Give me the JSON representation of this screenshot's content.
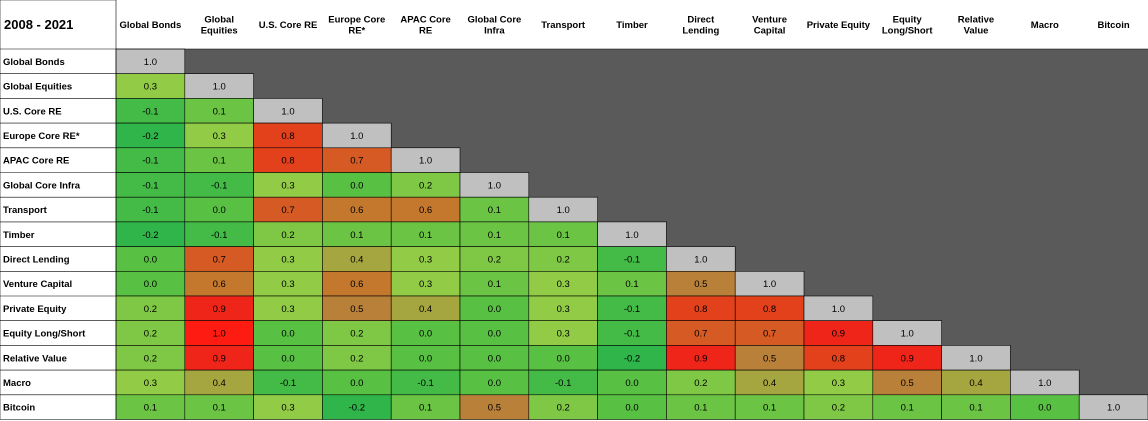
{
  "chart_data": {
    "type": "heatmap",
    "title": "2008 - 2021",
    "columns": [
      "Global Bonds",
      "Global Equities",
      "U.S. Core RE",
      "Europe Core RE*",
      "APAC Core RE",
      "Global Core Infra",
      "Transport",
      "Timber",
      "Direct Lending",
      "Venture Capital",
      "Private Equity",
      "Equity Long/Short",
      "Relative Value",
      "Macro",
      "Bitcoin"
    ],
    "column_labels": [
      [
        "Global Bonds"
      ],
      [
        "Global",
        "Equities"
      ],
      [
        "U.S. Core RE"
      ],
      [
        "Europe Core",
        "RE*"
      ],
      [
        "APAC Core",
        "RE"
      ],
      [
        "Global Core",
        "Infra"
      ],
      [
        "Transport"
      ],
      [
        "Timber"
      ],
      [
        "Direct",
        "Lending"
      ],
      [
        "Venture",
        "Capital"
      ],
      [
        "Private Equity"
      ],
      [
        "Equity",
        "Long/Short"
      ],
      [
        "Relative",
        "Value"
      ],
      [
        "Macro"
      ],
      [
        "Bitcoin"
      ]
    ],
    "rows": [
      "Global Bonds",
      "Global Equities",
      "U.S. Core RE",
      "Europe Core RE*",
      "APAC Core RE",
      "Global Core Infra",
      "Transport",
      "Timber",
      "Direct Lending",
      "Venture Capital",
      "Private Equity",
      "Equity Long/Short",
      "Relative Value",
      "Macro",
      "Bitcoin"
    ],
    "values": [
      [
        "1.0"
      ],
      [
        "0.3",
        "1.0"
      ],
      [
        "-0.1",
        "0.1",
        "1.0"
      ],
      [
        "-0.2",
        "0.3",
        "0.8",
        "1.0"
      ],
      [
        "-0.1",
        "0.1",
        "0.8",
        "0.7",
        "1.0"
      ],
      [
        "-0.1",
        "-0.1",
        "0.3",
        "0.0",
        "0.2",
        "1.0"
      ],
      [
        "-0.1",
        "0.0",
        "0.7",
        "0.6",
        "0.6",
        "0.1",
        "1.0"
      ],
      [
        "-0.2",
        "-0.1",
        "0.2",
        "0.1",
        "0.1",
        "0.1",
        "0.1",
        "1.0"
      ],
      [
        "0.0",
        "0.7",
        "0.3",
        "0.4",
        "0.3",
        "0.2",
        "0.2",
        "-0.1",
        "1.0"
      ],
      [
        "0.0",
        "0.6",
        "0.3",
        "0.6",
        "0.3",
        "0.1",
        "0.3",
        "0.1",
        "0.5",
        "1.0"
      ],
      [
        "0.2",
        "0.9",
        "0.3",
        "0.5",
        "0.4",
        "0.0",
        "0.3",
        "-0.1",
        "0.8",
        "0.8",
        "1.0"
      ],
      [
        "0.2",
        "1.0",
        "0.0",
        "0.2",
        "0.0",
        "0.0",
        "0.3",
        "-0.1",
        "0.7",
        "0.7",
        "0.9",
        "1.0"
      ],
      [
        "0.2",
        "0.9",
        "0.0",
        "0.2",
        "0.0",
        "0.0",
        "0.0",
        "-0.2",
        "0.9",
        "0.5",
        "0.8",
        "0.9",
        "1.0"
      ],
      [
        "0.3",
        "0.4",
        "-0.1",
        "0.0",
        "-0.1",
        "0.0",
        "-0.1",
        "0.0",
        "0.2",
        "0.4",
        "0.3",
        "0.5",
        "0.4",
        "1.0"
      ],
      [
        "0.1",
        "0.1",
        "0.3",
        "-0.2",
        "0.1",
        "0.5",
        "0.2",
        "0.0",
        "0.1",
        "0.1",
        "0.2",
        "0.1",
        "0.1",
        "0.0",
        "1.0"
      ]
    ],
    "value_range": [
      -0.2,
      1.0
    ],
    "legend": "none",
    "colors": {
      "diagonal": "#c0c0c0",
      "upper_triangle": "#5a5a5a",
      "page_background": "#ffffff",
      "gridline": "#000000",
      "scale": [
        {
          "at": -0.2,
          "color": "#2fb54a"
        },
        {
          "at": 0.0,
          "color": "#58c043"
        },
        {
          "at": 0.3,
          "color": "#92cc47"
        },
        {
          "at": 0.5,
          "color": "#b9803a"
        },
        {
          "at": 0.6,
          "color": "#c4782e"
        },
        {
          "at": 0.7,
          "color": "#d55a24"
        },
        {
          "at": 0.8,
          "color": "#e2411c"
        },
        {
          "at": 0.9,
          "color": "#f0251a"
        },
        {
          "at": 1.0,
          "color": "#fe1c12"
        }
      ]
    }
  }
}
